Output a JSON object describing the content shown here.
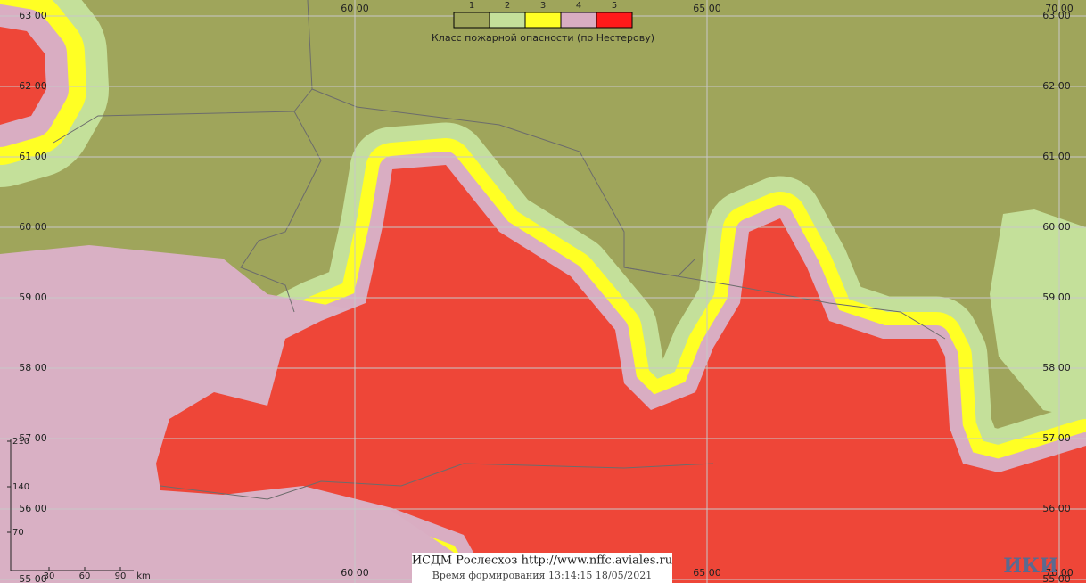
{
  "legend": {
    "classes": [
      "1",
      "2",
      "3",
      "4",
      "5"
    ],
    "title": "Класс пожарной опасности (по Нестерову)"
  },
  "grid_labels": {
    "latitudes": [
      "63 00",
      "62 00",
      "61 00",
      "60 00",
      "59 00",
      "58 00",
      "57 00",
      "56 00",
      "55 00"
    ],
    "longitudes": [
      "60 00",
      "65 00",
      "70 00"
    ]
  },
  "scale": {
    "vertical": [
      "210",
      "140",
      "70"
    ],
    "horizontal": [
      "30",
      "60",
      "90"
    ],
    "unit": "km"
  },
  "footer": {
    "source": "ИСДМ Рослесхоз http://www.nffc.aviales.ru",
    "time": "Время формирования 13:14:15 18/05/2021"
  },
  "logo": "ИКИ"
}
